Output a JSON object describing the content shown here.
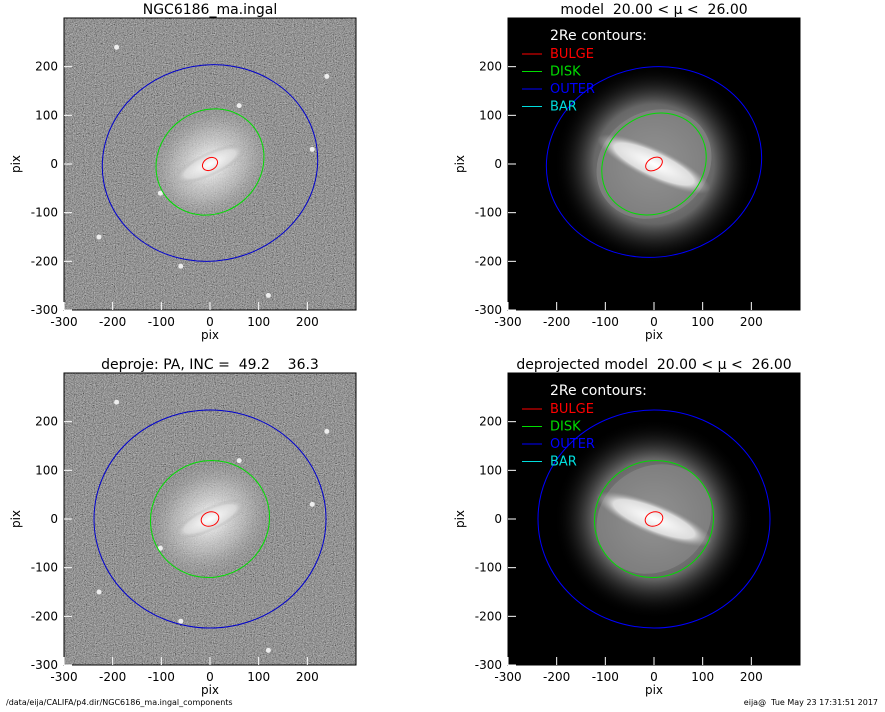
{
  "chart_data": [
    {
      "type": "image",
      "title": "NGC6186_ma.ingal",
      "xlabel": "pix",
      "ylabel": "pix",
      "xlim": [
        -300,
        300
      ],
      "ylim": [
        -300,
        300
      ],
      "xticks": [
        -300,
        -200,
        -100,
        0,
        100,
        200
      ],
      "yticks": [
        -300,
        -200,
        -100,
        0,
        100,
        200
      ]
    },
    {
      "type": "model",
      "title": "model  20.00 < μ <  26.00",
      "xlabel": "pix",
      "ylabel": "pix",
      "xlim": [
        -300,
        300
      ],
      "ylim": [
        -300,
        300
      ],
      "xticks": [
        -300,
        -200,
        -100,
        0,
        100,
        200
      ],
      "yticks": [
        -300,
        -200,
        -100,
        0,
        100,
        200
      ],
      "legend_title": "2Re contours:",
      "contours": [
        {
          "name": "BULGE",
          "color": "#ff0000"
        },
        {
          "name": "DISK",
          "color": "#00dd00"
        },
        {
          "name": "OUTER",
          "color": "#0000ff"
        },
        {
          "name": "BAR",
          "color": "#00dddd"
        }
      ]
    },
    {
      "type": "image",
      "title": "deproje: PA, INC =  49.2    36.3",
      "xlabel": "pix",
      "ylabel": "pix",
      "xlim": [
        -300,
        300
      ],
      "ylim": [
        -300,
        300
      ],
      "xticks": [
        -300,
        -200,
        -100,
        0,
        100,
        200
      ],
      "yticks": [
        -300,
        -200,
        -100,
        0,
        100,
        200
      ]
    },
    {
      "type": "model",
      "title": "deprojected model  20.00 < μ <  26.00",
      "xlabel": "pix",
      "ylabel": "pix",
      "xlim": [
        -300,
        300
      ],
      "ylim": [
        -300,
        300
      ],
      "xticks": [
        -300,
        -200,
        -100,
        0,
        100,
        200
      ],
      "yticks": [
        -300,
        -200,
        -100,
        0,
        100,
        200
      ],
      "legend_title": "2Re contours:",
      "contours": [
        {
          "name": "BULGE",
          "color": "#ff0000"
        },
        {
          "name": "DISK",
          "color": "#00dd00"
        },
        {
          "name": "OUTER",
          "color": "#0000ff"
        },
        {
          "name": "BAR",
          "color": "#00dddd"
        }
      ]
    }
  ],
  "footer": {
    "path": "/data/eija/CALIFA/p4.dir/NGC6186_ma.ingal_components",
    "stamp": "eija@  Tue May 23 17:31:51 2017"
  }
}
